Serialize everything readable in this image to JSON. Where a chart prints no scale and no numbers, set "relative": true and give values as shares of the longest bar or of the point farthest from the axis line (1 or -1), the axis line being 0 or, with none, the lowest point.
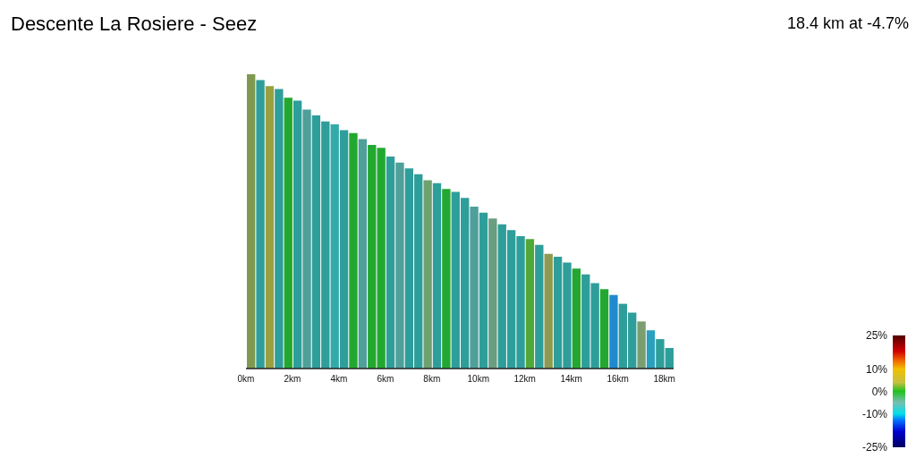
{
  "chart_data": {
    "type": "bar",
    "title": "Descente La Rosiere - Seez",
    "annotations": [
      "18.4 km at -4.7%"
    ],
    "relative": true,
    "x": [
      0.2,
      0.6,
      1.0,
      1.4,
      1.8,
      2.2,
      2.6,
      3.0,
      3.4,
      3.8,
      4.2,
      4.6,
      5.0,
      5.4,
      5.8,
      6.2,
      6.6,
      7.0,
      7.4,
      7.8,
      8.2,
      8.6,
      9.0,
      9.4,
      9.8,
      10.2,
      10.6,
      11.0,
      11.4,
      11.8,
      12.2,
      12.6,
      13.0,
      13.4,
      13.8,
      14.2,
      14.6,
      15.0,
      15.4,
      15.8,
      16.2,
      16.6,
      17.0,
      17.4,
      17.8,
      18.2
    ],
    "values": [
      1.0,
      0.98,
      0.96,
      0.95,
      0.92,
      0.91,
      0.88,
      0.86,
      0.84,
      0.83,
      0.81,
      0.8,
      0.78,
      0.76,
      0.75,
      0.72,
      0.7,
      0.68,
      0.66,
      0.64,
      0.63,
      0.61,
      0.6,
      0.58,
      0.55,
      0.53,
      0.51,
      0.49,
      0.47,
      0.45,
      0.44,
      0.42,
      0.39,
      0.38,
      0.36,
      0.34,
      0.32,
      0.29,
      0.27,
      0.25,
      0.22,
      0.19,
      0.16,
      0.13,
      0.1,
      0.07
    ],
    "colors": [
      "#7f9a50",
      "#2e9e9a",
      "#9aa040",
      "#2e9e9a",
      "#22a830",
      "#2e9e9a",
      "#4f9f9a",
      "#2e9e9a",
      "#2e9e9a",
      "#33aaaa",
      "#2e9e9a",
      "#22a830",
      "#4f9f9a",
      "#22a830",
      "#22a830",
      "#2e9e9a",
      "#4f9f9a",
      "#2e9e9a",
      "#2e9e9a",
      "#6fa070",
      "#2e9e9a",
      "#22a830",
      "#2e9e9a",
      "#2e9e9a",
      "#4f9f9a",
      "#2e9e9a",
      "#6a9e80",
      "#2e9e9a",
      "#2e9e9a",
      "#2e9e9a",
      "#50a838",
      "#2e9e9a",
      "#8e9a50",
      "#2e9e9a",
      "#2e9e9a",
      "#22a830",
      "#2e9e9a",
      "#2e9e9a",
      "#22a830",
      "#1f8ad0",
      "#2e9e9a",
      "#2e9e9a",
      "#7a9e70",
      "#2aa0c0",
      "#2e9e9a",
      "#2e9e9a"
    ],
    "xlim": [
      0,
      18.4
    ],
    "xticks": [
      {
        "value": 0,
        "label": "0km"
      },
      {
        "value": 2,
        "label": "2km"
      },
      {
        "value": 4,
        "label": "4km"
      },
      {
        "value": 6,
        "label": "6km"
      },
      {
        "value": 8,
        "label": "8km"
      },
      {
        "value": 10,
        "label": "10km"
      },
      {
        "value": 12,
        "label": "12km"
      },
      {
        "value": 14,
        "label": "14km"
      },
      {
        "value": 16,
        "label": "16km"
      },
      {
        "value": 18,
        "label": "18km"
      }
    ],
    "clim": [
      -25,
      25
    ],
    "cticks": [
      {
        "value": 25,
        "label": "25%"
      },
      {
        "value": 10,
        "label": "10%"
      },
      {
        "value": 0,
        "label": "0%"
      },
      {
        "value": -10,
        "label": "-10%"
      },
      {
        "value": -25,
        "label": "-25%"
      }
    ]
  }
}
